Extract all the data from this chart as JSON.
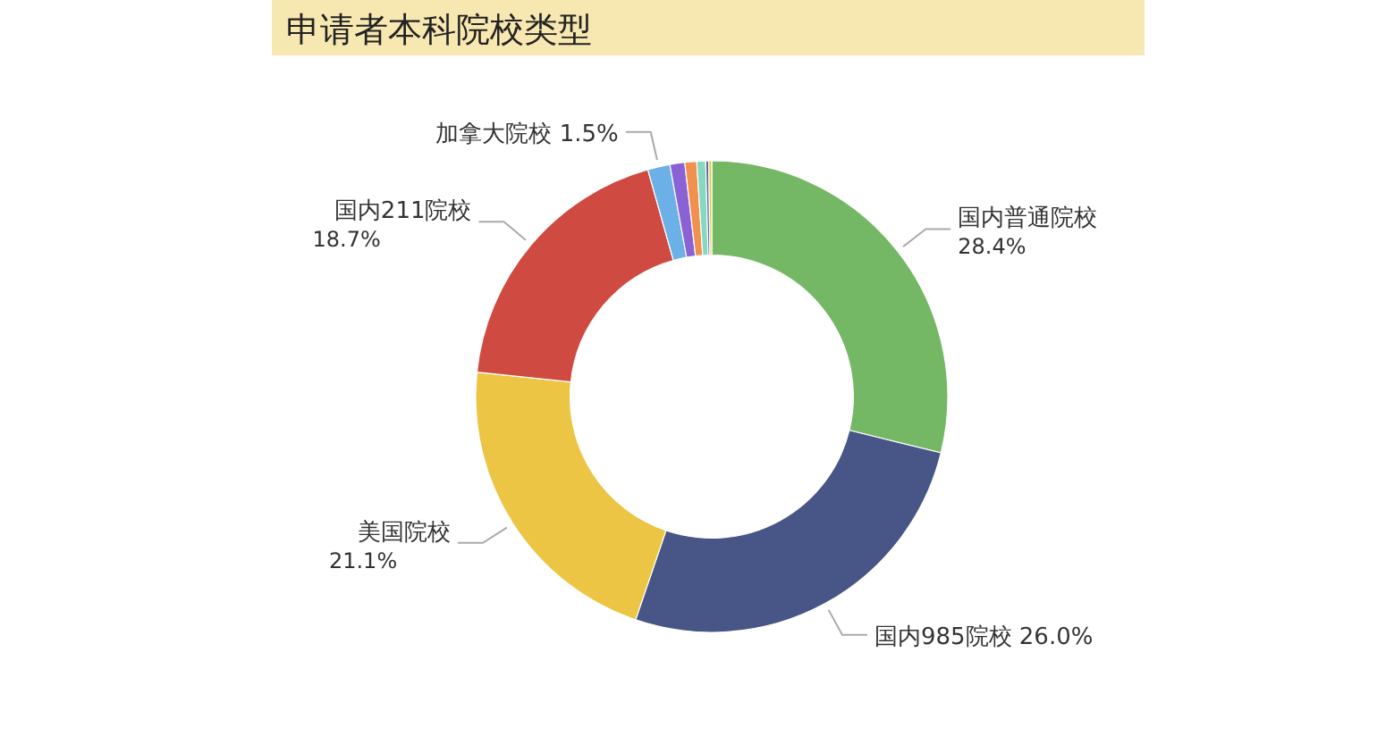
{
  "chart_data": {
    "type": "donut",
    "title": "申请者本科院校类型",
    "categories": [
      "国内普通院校",
      "国内985院校",
      "美国院校",
      "国内211院校",
      "加拿大院校",
      null,
      null,
      null,
      null,
      null
    ],
    "values": [
      28.4,
      26.0,
      21.1,
      18.7,
      1.5,
      1.0,
      0.8,
      0.6,
      0.2,
      0.2
    ],
    "value_labels": [
      "28.4%",
      "26.0%",
      "21.1%",
      "18.7%",
      "1.5%",
      null,
      null,
      null,
      null,
      null
    ],
    "colors": [
      "#74b866",
      "#475587",
      "#ecc544",
      "#cf4a40",
      "#6bb0e6",
      "#8a62d6",
      "#f0914f",
      "#86d8c0",
      "#5a6699",
      "#e0c94a"
    ],
    "legend": false
  }
}
